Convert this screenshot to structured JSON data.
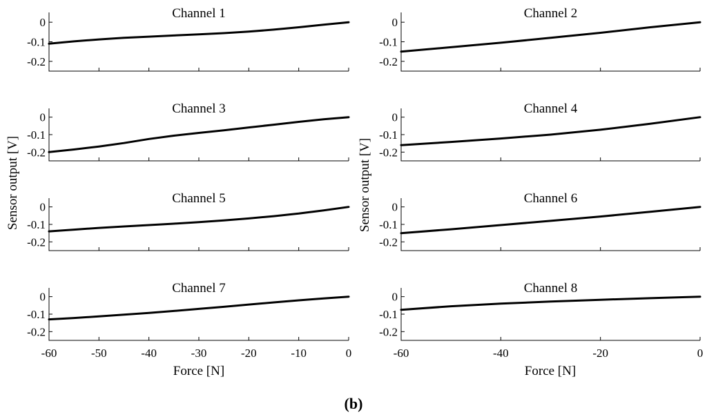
{
  "caption": {
    "open": "(",
    "letter": "b",
    "close": ")"
  },
  "ylabel": "Sensor output [V]",
  "xlabel": "Force [N]",
  "chart_data": [
    {
      "type": "line",
      "title": "Channel 1",
      "xlim": [
        -60,
        0
      ],
      "ylim": [
        -0.25,
        0.05
      ],
      "xticks": [
        -60,
        -50,
        -40,
        -30,
        -20,
        -10,
        0
      ],
      "yticks": [
        0,
        -0.1,
        -0.2
      ],
      "ytick_labels": [
        "0",
        "-0.1",
        "-0.2"
      ],
      "series": [
        {
          "x": [
            -60,
            -55,
            -50,
            -45,
            -40,
            -35,
            -30,
            -25,
            -20,
            -15,
            -10,
            -5,
            0
          ],
          "y": [
            -0.11,
            -0.098,
            -0.088,
            -0.08,
            -0.074,
            -0.068,
            -0.062,
            -0.056,
            -0.048,
            -0.038,
            -0.026,
            -0.013,
            0
          ]
        }
      ]
    },
    {
      "type": "line",
      "title": "Channel 2",
      "xlim": [
        -60,
        0
      ],
      "ylim": [
        -0.25,
        0.05
      ],
      "xticks": [
        -60,
        -40,
        -20,
        0
      ],
      "yticks": [
        0,
        -0.1,
        -0.2
      ],
      "ytick_labels": [
        "0",
        "-0.1",
        "-0.2"
      ],
      "series": [
        {
          "x": [
            -60,
            -50,
            -40,
            -30,
            -20,
            -10,
            0
          ],
          "y": [
            -0.15,
            -0.128,
            -0.105,
            -0.08,
            -0.054,
            -0.026,
            0
          ]
        }
      ]
    },
    {
      "type": "line",
      "title": "Channel 3",
      "xlim": [
        -60,
        0
      ],
      "ylim": [
        -0.25,
        0.05
      ],
      "xticks": [
        -60,
        -50,
        -40,
        -30,
        -20,
        -10,
        0
      ],
      "yticks": [
        0,
        -0.1,
        -0.2
      ],
      "ytick_labels": [
        "0",
        "-0.1",
        "-0.2"
      ],
      "series": [
        {
          "x": [
            -60,
            -55,
            -50,
            -45,
            -40,
            -35,
            -30,
            -25,
            -20,
            -15,
            -10,
            -5,
            0
          ],
          "y": [
            -0.2,
            -0.185,
            -0.168,
            -0.148,
            -0.125,
            -0.106,
            -0.09,
            -0.075,
            -0.059,
            -0.043,
            -0.027,
            -0.012,
            0
          ]
        }
      ]
    },
    {
      "type": "line",
      "title": "Channel 4",
      "xlim": [
        -60,
        0
      ],
      "ylim": [
        -0.25,
        0.05
      ],
      "xticks": [
        -60,
        -40,
        -20,
        0
      ],
      "yticks": [
        0,
        -0.1,
        -0.2
      ],
      "ytick_labels": [
        "0",
        "-0.1",
        "-0.2"
      ],
      "series": [
        {
          "x": [
            -60,
            -50,
            -40,
            -30,
            -20,
            -10,
            0
          ],
          "y": [
            -0.16,
            -0.142,
            -0.122,
            -0.1,
            -0.072,
            -0.038,
            0
          ]
        }
      ]
    },
    {
      "type": "line",
      "title": "Channel 5",
      "xlim": [
        -60,
        0
      ],
      "ylim": [
        -0.25,
        0.05
      ],
      "xticks": [
        -60,
        -50,
        -40,
        -30,
        -20,
        -10,
        0
      ],
      "yticks": [
        0,
        -0.1,
        -0.2
      ],
      "ytick_labels": [
        "0",
        "-0.1",
        "-0.2"
      ],
      "series": [
        {
          "x": [
            -60,
            -55,
            -50,
            -45,
            -40,
            -35,
            -30,
            -25,
            -20,
            -15,
            -10,
            -5,
            0
          ],
          "y": [
            -0.14,
            -0.13,
            -0.12,
            -0.112,
            -0.104,
            -0.096,
            -0.087,
            -0.077,
            -0.066,
            -0.053,
            -0.038,
            -0.02,
            0
          ]
        }
      ]
    },
    {
      "type": "line",
      "title": "Channel 6",
      "xlim": [
        -60,
        0
      ],
      "ylim": [
        -0.25,
        0.05
      ],
      "xticks": [
        -60,
        -40,
        -20,
        0
      ],
      "yticks": [
        0,
        -0.1,
        -0.2
      ],
      "ytick_labels": [
        "0",
        "-0.1",
        "-0.2"
      ],
      "series": [
        {
          "x": [
            -60,
            -50,
            -40,
            -30,
            -20,
            -10,
            0
          ],
          "y": [
            -0.15,
            -0.128,
            -0.104,
            -0.08,
            -0.055,
            -0.028,
            0
          ]
        }
      ]
    },
    {
      "type": "line",
      "title": "Channel 7",
      "xlim": [
        -60,
        0
      ],
      "ylim": [
        -0.25,
        0.05
      ],
      "xticks": [
        -60,
        -50,
        -40,
        -30,
        -20,
        -10,
        0
      ],
      "yticks": [
        0,
        -0.1,
        -0.2
      ],
      "ytick_labels": [
        "0",
        "-0.1",
        "-0.2"
      ],
      "series": [
        {
          "x": [
            -60,
            -55,
            -50,
            -45,
            -40,
            -35,
            -30,
            -25,
            -20,
            -15,
            -10,
            -5,
            0
          ],
          "y": [
            -0.13,
            -0.122,
            -0.113,
            -0.103,
            -0.093,
            -0.082,
            -0.07,
            -0.058,
            -0.045,
            -0.033,
            -0.021,
            -0.01,
            0
          ]
        }
      ]
    },
    {
      "type": "line",
      "title": "Channel 8",
      "xlim": [
        -60,
        0
      ],
      "ylim": [
        -0.25,
        0.05
      ],
      "xticks": [
        -60,
        -40,
        -20,
        0
      ],
      "yticks": [
        0,
        -0.1,
        -0.2
      ],
      "ytick_labels": [
        "0",
        "-0.1",
        "-0.2"
      ],
      "series": [
        {
          "x": [
            -60,
            -50,
            -40,
            -30,
            -20,
            -10,
            0
          ],
          "y": [
            -0.075,
            -0.055,
            -0.04,
            -0.028,
            -0.018,
            -0.009,
            0
          ]
        }
      ]
    }
  ]
}
